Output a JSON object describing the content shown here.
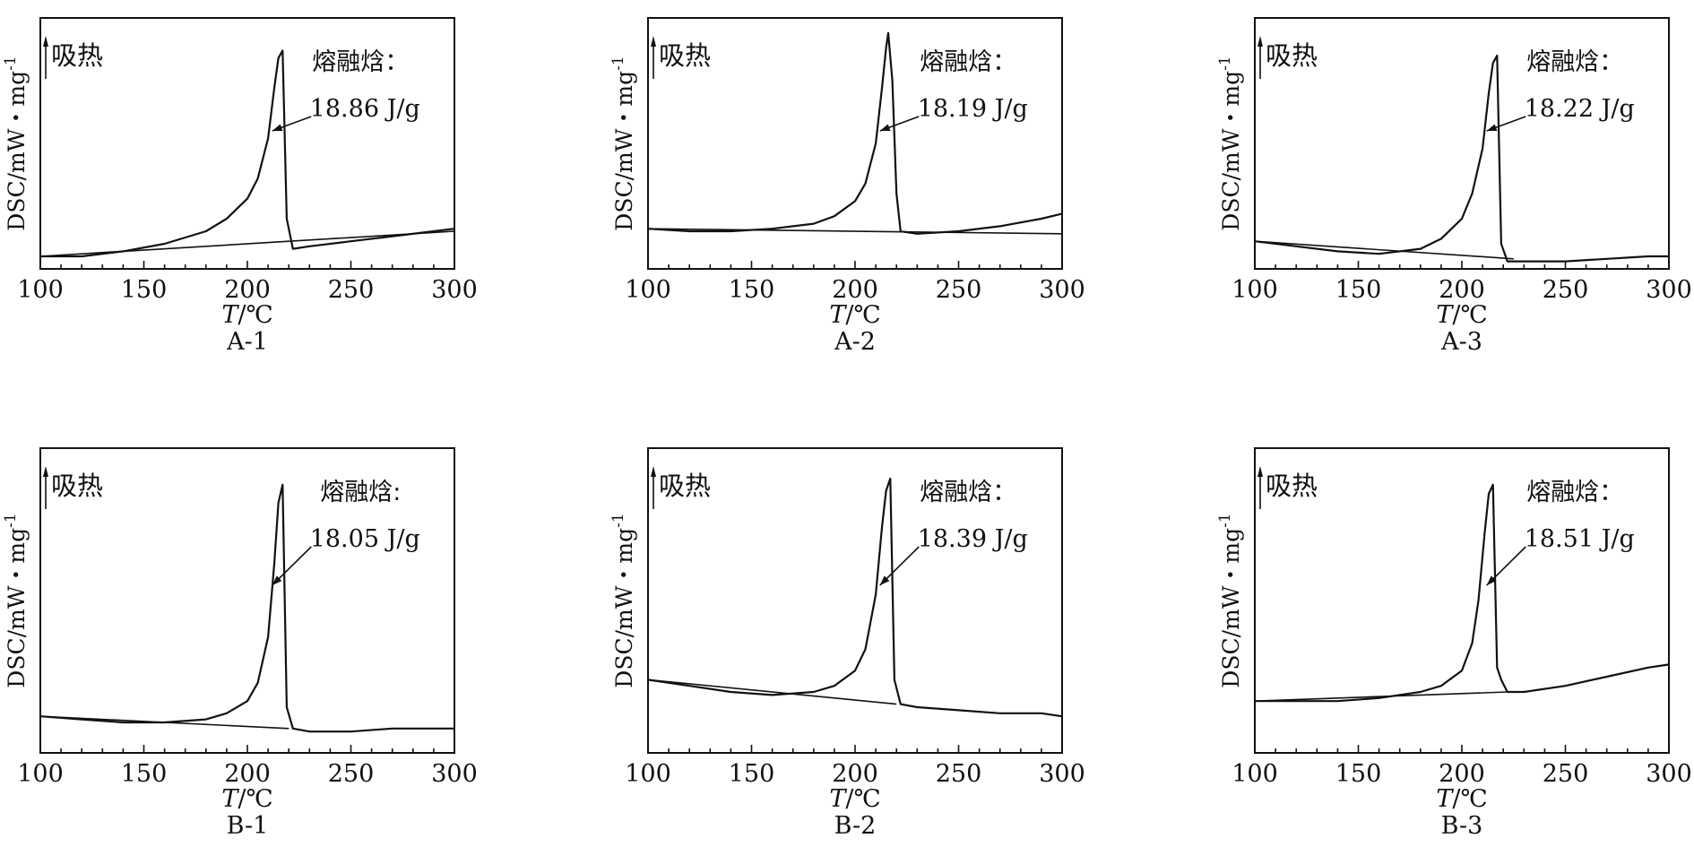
{
  "figure": {
    "background": "#ffffff",
    "line_color": "#111111"
  },
  "chart_data": [
    {
      "type": "line",
      "panel": "A-1",
      "xlabel_italic": "T",
      "xlabel_unit": "/℃",
      "ylabel": "DSC/mW・mg",
      "ylabel_sup": "-1",
      "xlim": [
        100,
        300
      ],
      "ylim": [
        0,
        1
      ],
      "x_ticks": [
        100,
        150,
        200,
        250,
        300
      ],
      "endo_label": "吸热",
      "annotation_title": "熔融焓：",
      "annotation_value": "18.86 J/g",
      "series": [
        {
          "x": [
            100,
            120,
            140,
            160,
            180,
            190,
            200,
            205,
            210,
            213,
            215,
            217,
            219,
            222,
            230,
            250,
            270,
            290,
            300
          ],
          "values": [
            0.05,
            0.05,
            0.07,
            0.1,
            0.15,
            0.2,
            0.28,
            0.36,
            0.52,
            0.72,
            0.84,
            0.87,
            0.2,
            0.08,
            0.09,
            0.11,
            0.13,
            0.15,
            0.16
          ]
        }
      ],
      "baseline": {
        "x": [
          100,
          300
        ],
        "values": [
          0.05,
          0.15
        ]
      }
    },
    {
      "type": "line",
      "panel": "A-2",
      "xlabel_italic": "T",
      "xlabel_unit": "/℃",
      "ylabel": "DSC/mW・mg",
      "ylabel_sup": "-1",
      "xlim": [
        100,
        300
      ],
      "ylim": [
        0,
        1
      ],
      "x_ticks": [
        100,
        150,
        200,
        250,
        300
      ],
      "endo_label": "吸热",
      "annotation_title": "熔融焓：",
      "annotation_value": "18.19 J/g",
      "series": [
        {
          "x": [
            100,
            120,
            140,
            160,
            180,
            190,
            200,
            205,
            210,
            213,
            215,
            216,
            218,
            220,
            222,
            230,
            250,
            270,
            290,
            300
          ],
          "values": [
            0.16,
            0.15,
            0.15,
            0.16,
            0.18,
            0.21,
            0.27,
            0.34,
            0.5,
            0.72,
            0.88,
            0.94,
            0.75,
            0.3,
            0.15,
            0.14,
            0.15,
            0.17,
            0.2,
            0.22
          ]
        }
      ],
      "baseline": {
        "x": [
          100,
          300
        ],
        "values": [
          0.16,
          0.14
        ]
      }
    },
    {
      "type": "line",
      "panel": "A-3",
      "xlabel_italic": "T",
      "xlabel_unit": "/℃",
      "ylabel": "DSC/mW・mg",
      "ylabel_sup": "-1",
      "xlim": [
        100,
        300
      ],
      "ylim": [
        0,
        1
      ],
      "x_ticks": [
        100,
        150,
        200,
        250,
        300
      ],
      "endo_label": "吸热",
      "annotation_title": "熔融焓：",
      "annotation_value": "18.22 J/g",
      "series": [
        {
          "x": [
            100,
            120,
            140,
            160,
            180,
            190,
            200,
            205,
            210,
            213,
            215,
            217,
            219,
            222,
            230,
            250,
            270,
            290,
            300
          ],
          "values": [
            0.11,
            0.09,
            0.07,
            0.06,
            0.08,
            0.12,
            0.2,
            0.3,
            0.48,
            0.7,
            0.82,
            0.85,
            0.1,
            0.03,
            0.03,
            0.03,
            0.04,
            0.05,
            0.05
          ]
        }
      ],
      "baseline": {
        "x": [
          100,
          225
        ],
        "values": [
          0.11,
          0.04
        ]
      }
    },
    {
      "type": "line",
      "panel": "B-1",
      "xlabel_italic": "T",
      "xlabel_unit": "/℃",
      "ylabel": "DSC/mW・mg",
      "ylabel_sup": "-1",
      "xlim": [
        100,
        300
      ],
      "ylim": [
        0,
        1
      ],
      "x_ticks": [
        100,
        150,
        200,
        250,
        300
      ],
      "endo_label": "吸热",
      "annotation_title": "熔融焓:",
      "annotation_value": "18.05 J/g",
      "series": [
        {
          "x": [
            100,
            120,
            140,
            160,
            180,
            190,
            200,
            205,
            210,
            213,
            215,
            217,
            219,
            222,
            230,
            250,
            270,
            290,
            300
          ],
          "values": [
            0.12,
            0.11,
            0.1,
            0.1,
            0.11,
            0.13,
            0.17,
            0.23,
            0.38,
            0.62,
            0.82,
            0.88,
            0.15,
            0.08,
            0.07,
            0.07,
            0.08,
            0.08,
            0.08
          ]
        }
      ],
      "baseline": {
        "x": [
          100,
          220
        ],
        "values": [
          0.12,
          0.08
        ]
      }
    },
    {
      "type": "line",
      "panel": "B-2",
      "xlabel_italic": "T",
      "xlabel_unit": "/℃",
      "ylabel": "DSC/mW・mg",
      "ylabel_sup": "-1",
      "xlim": [
        100,
        300
      ],
      "ylim": [
        0,
        1
      ],
      "x_ticks": [
        100,
        150,
        200,
        250,
        300
      ],
      "endo_label": "吸热",
      "annotation_title": "熔融焓：",
      "annotation_value": "18.39 J/g",
      "series": [
        {
          "x": [
            100,
            120,
            140,
            160,
            180,
            190,
            200,
            205,
            210,
            213,
            215,
            217,
            219,
            222,
            230,
            250,
            270,
            290,
            300
          ],
          "values": [
            0.24,
            0.22,
            0.2,
            0.19,
            0.2,
            0.22,
            0.27,
            0.34,
            0.52,
            0.74,
            0.86,
            0.9,
            0.24,
            0.16,
            0.15,
            0.14,
            0.13,
            0.13,
            0.12
          ]
        }
      ],
      "baseline": {
        "x": [
          100,
          220
        ],
        "values": [
          0.24,
          0.16
        ]
      }
    },
    {
      "type": "line",
      "panel": "B-3",
      "xlabel_italic": "T",
      "xlabel_unit": "/℃",
      "ylabel": "DSC/mW・mg",
      "ylabel_sup": "-1",
      "xlim": [
        100,
        300
      ],
      "ylim": [
        0,
        1
      ],
      "x_ticks": [
        100,
        150,
        200,
        250,
        300
      ],
      "endo_label": "吸热",
      "annotation_title": "熔融焓：",
      "annotation_value": "18.51 J/g",
      "series": [
        {
          "x": [
            100,
            120,
            140,
            160,
            180,
            190,
            200,
            205,
            208,
            211,
            213,
            215,
            217,
            219,
            222,
            230,
            250,
            270,
            290,
            300
          ],
          "values": [
            0.17,
            0.17,
            0.17,
            0.18,
            0.2,
            0.22,
            0.27,
            0.36,
            0.5,
            0.72,
            0.85,
            0.88,
            0.28,
            0.24,
            0.2,
            0.2,
            0.22,
            0.25,
            0.28,
            0.29
          ]
        }
      ],
      "baseline": {
        "x": [
          100,
          222
        ],
        "values": [
          0.17,
          0.2
        ]
      }
    }
  ]
}
